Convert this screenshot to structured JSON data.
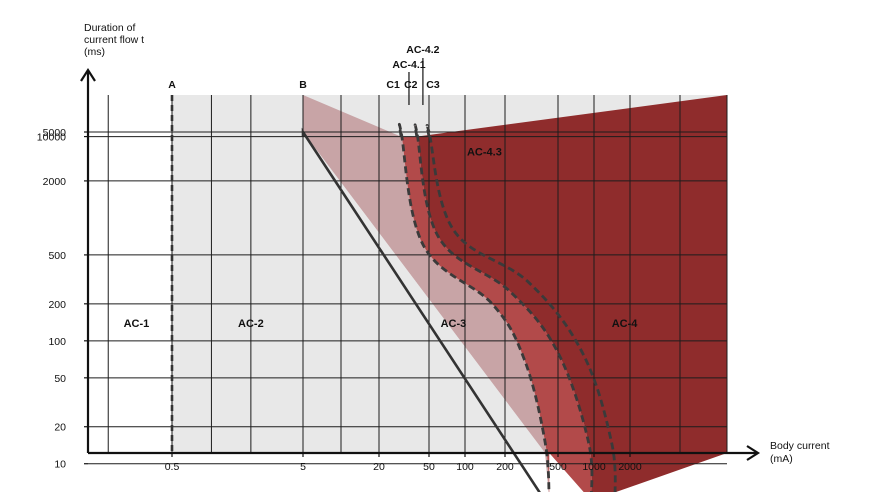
{
  "chart_data": {
    "type": "area",
    "x_scale": "log",
    "y_scale": "log",
    "y_axis_label_lines": [
      "Duration of",
      "current flow t",
      "(ms)"
    ],
    "x_axis_label_lines": [
      "Body current",
      "(mA)"
    ],
    "x_ticks": [
      {
        "value": 0.5,
        "label": "0.5"
      },
      {
        "value": 5,
        "label": "5"
      },
      {
        "value": 20,
        "label": "20"
      },
      {
        "value": 50,
        "label": "50"
      },
      {
        "value": 100,
        "label": "100"
      },
      {
        "value": 200,
        "label": "200"
      },
      {
        "value": 500,
        "label": "500"
      },
      {
        "value": 1000,
        "label": "1000"
      },
      {
        "value": 2000,
        "label": "2000"
      }
    ],
    "y_ticks": [
      {
        "value": 10000,
        "label": "10000"
      },
      {
        "value": 5000,
        "label": "5000"
      },
      {
        "value": 2000,
        "label": "2000"
      },
      {
        "value": 500,
        "label": "500"
      },
      {
        "value": 200,
        "label": "200"
      },
      {
        "value": 100,
        "label": "100"
      },
      {
        "value": 50,
        "label": "50"
      },
      {
        "value": 20,
        "label": "20"
      },
      {
        "value": 10,
        "label": "10"
      }
    ],
    "boundary_curves": [
      {
        "label": "A",
        "style": "dashed",
        "points": [
          [
            0.5,
            5
          ],
          [
            0.5,
            10000
          ]
        ]
      },
      {
        "label": "B",
        "style": "solid",
        "points": [
          [
            5,
            10000
          ],
          [
            5,
            5000
          ],
          [
            400,
            5
          ]
        ]
      },
      {
        "label": "C1",
        "style": "dashed",
        "points": [
          [
            30,
            10000
          ],
          [
            30,
            5000
          ],
          [
            45,
            600
          ],
          [
            160,
            200
          ],
          [
            280,
            70
          ],
          [
            400,
            15
          ],
          [
            430,
            5
          ]
        ]
      },
      {
        "label": "C2",
        "style": "dashed",
        "points": [
          [
            40,
            10000
          ],
          [
            40,
            5000
          ],
          [
            60,
            700
          ],
          [
            220,
            250
          ],
          [
            500,
            80
          ],
          [
            900,
            15
          ],
          [
            950,
            5
          ]
        ]
      },
      {
        "label": "C3",
        "style": "dashed",
        "points": [
          [
            50,
            10000
          ],
          [
            50,
            5000
          ],
          [
            80,
            800
          ],
          [
            300,
            300
          ],
          [
            800,
            80
          ],
          [
            1400,
            15
          ],
          [
            1500,
            5
          ]
        ]
      }
    ],
    "zones": [
      {
        "label": "AC-1",
        "color": "#ffffff",
        "label_at": [
          0.3,
          140
        ]
      },
      {
        "label": "AC-2",
        "color": "#e8e8e8",
        "label_at": [
          2.0,
          140
        ]
      },
      {
        "label": "AC-3",
        "color": "#e8e8e8",
        "label_at": [
          80,
          140
        ]
      },
      {
        "label": "AC-4",
        "color": "#8f2c2c",
        "label_at": [
          1800,
          140
        ]
      },
      {
        "label": "AC-4.1",
        "color": "#c8a4a6"
      },
      {
        "label": "AC-4.2",
        "color": "#b24a4a"
      },
      {
        "label": "AC-4.3",
        "color": "#8f2c2c",
        "label_at": [
          140,
          7000
        ]
      }
    ],
    "curve_labels": [
      "A",
      "B",
      "C1",
      "C2",
      "C3"
    ],
    "callout_labels": [
      "AC-4.1",
      "AC-4.2"
    ],
    "grid": true,
    "legend": "none"
  }
}
